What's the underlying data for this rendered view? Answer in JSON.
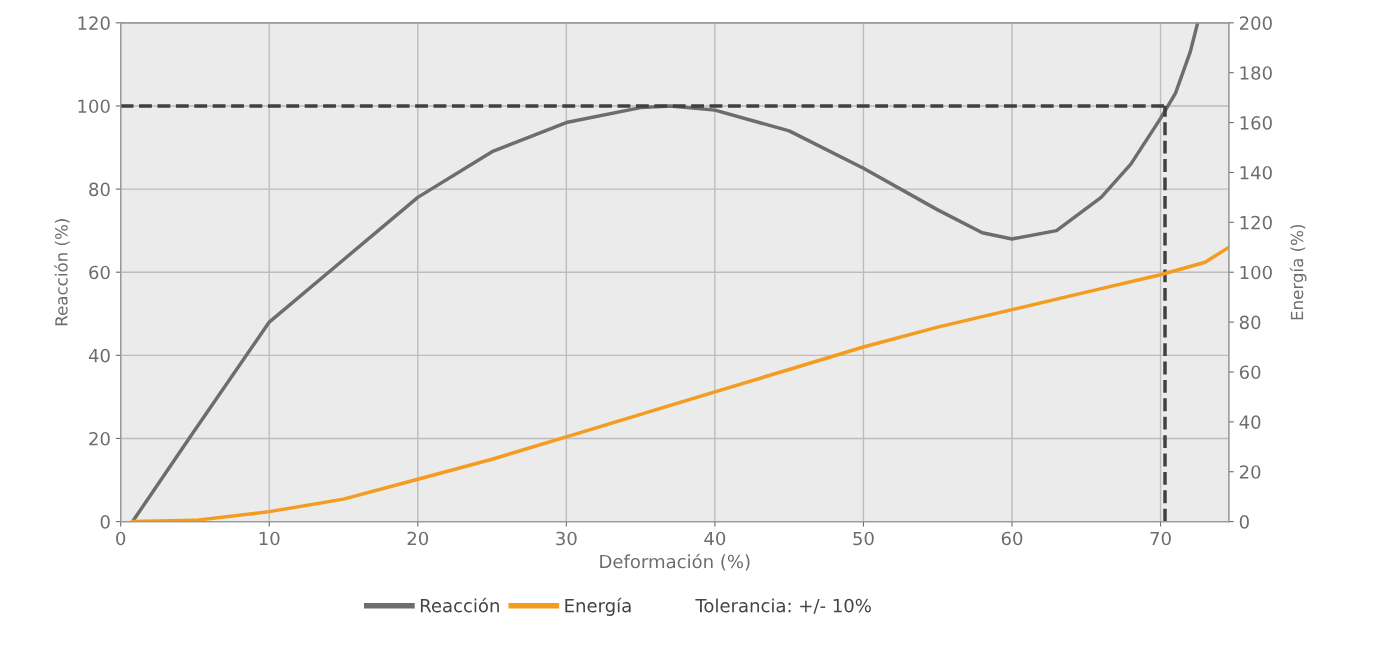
{
  "chart_data": {
    "type": "line",
    "xlabel": "Deformación (%)",
    "ylabel": "Reacción (%)",
    "y2label": "Energía (%)",
    "xlim": [
      0,
      74.6
    ],
    "xticks": [
      0,
      10,
      20,
      30,
      40,
      50,
      60,
      70
    ],
    "ylim": [
      0,
      120
    ],
    "yticks": [
      0,
      20,
      40,
      60,
      80,
      100,
      120
    ],
    "y2lim": [
      0,
      200
    ],
    "y2ticks": [
      0,
      20,
      40,
      60,
      80,
      100,
      120,
      140,
      160,
      180,
      200
    ],
    "grid": true,
    "legend": "bottom",
    "line_style": "solid",
    "series": [
      {
        "name": "Reacción",
        "color": "#6d6d6d",
        "x": [
          0.8,
          4.8,
          10,
          15,
          20,
          25,
          30,
          35,
          37,
          40,
          45,
          50,
          55,
          58,
          60,
          63,
          66,
          68,
          70,
          71,
          72,
          72.5
        ],
        "values": [
          0,
          21,
          48,
          63,
          78,
          89,
          96,
          99.6,
          100,
          99,
          94,
          85,
          75,
          69.5,
          68,
          70,
          78,
          86,
          97,
          103,
          113,
          120
        ]
      },
      {
        "name": "Energía",
        "color": "#f39c1f",
        "axis": "y2",
        "x": [
          0.8,
          5,
          10,
          15,
          20,
          25,
          30,
          35,
          40,
          45,
          50,
          55,
          60,
          65,
          70,
          73,
          74.6
        ],
        "values": [
          0,
          0.5,
          4,
          9,
          17,
          25,
          34,
          43,
          52,
          61,
          70,
          78,
          85,
          92,
          99,
          104,
          110
        ]
      }
    ],
    "ref_lines": [
      {
        "axis": "y",
        "value": 100,
        "color": "#404040",
        "line_style": "dashed"
      },
      {
        "axis": "x",
        "value": 70.3,
        "color": "#404040",
        "line_style": "dashed"
      }
    ],
    "annotations": [
      "Tolerancia: +/- 10%"
    ]
  }
}
